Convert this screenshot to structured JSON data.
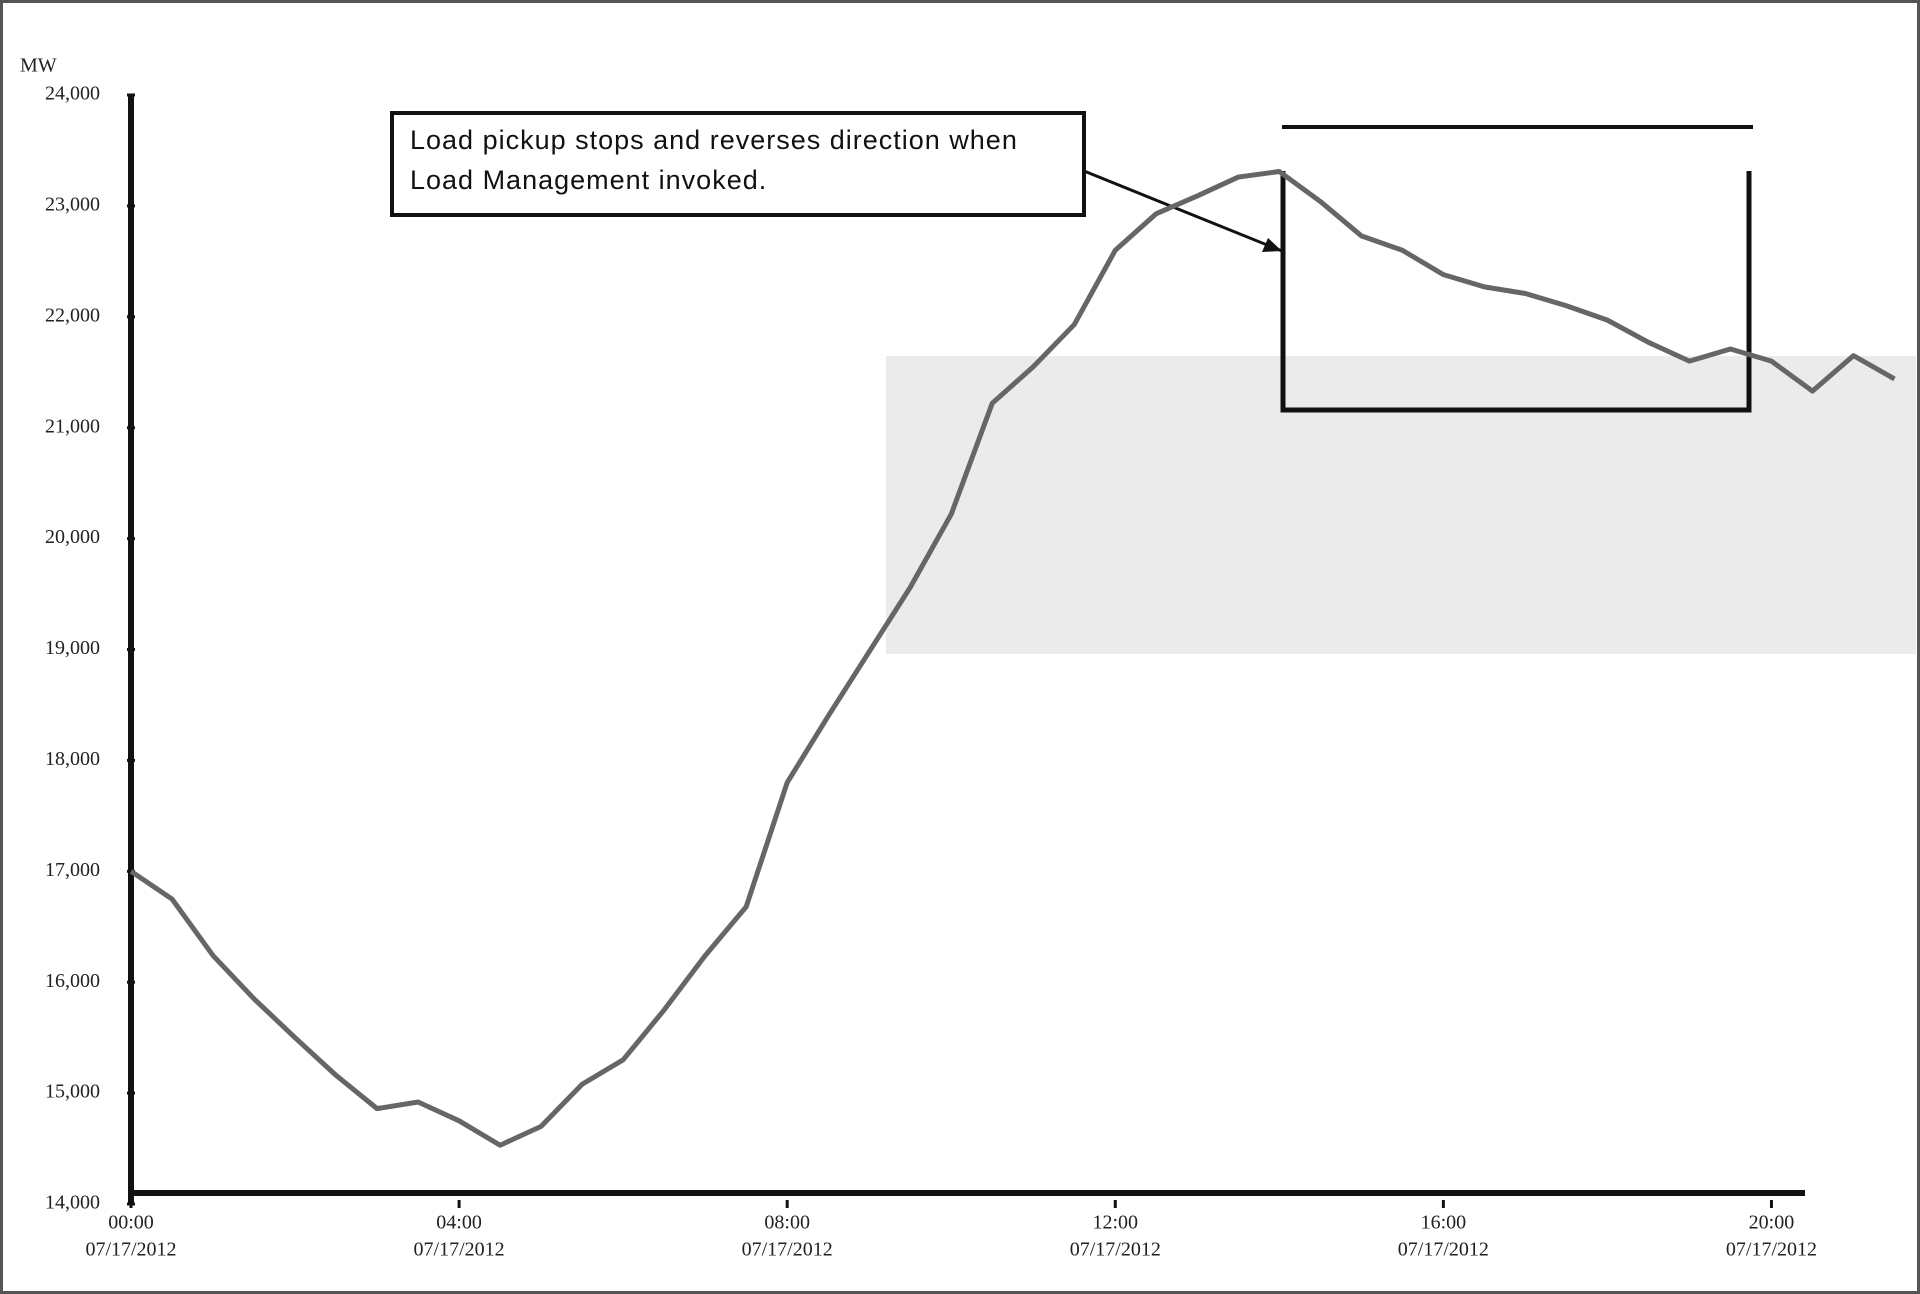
{
  "chart_data": {
    "type": "line",
    "y_label": "MW",
    "annotation": "Load pickup stops and reverses direction when Load Management invoked.",
    "x": [
      0,
      0.5,
      1,
      1.5,
      2,
      2.5,
      3,
      3.5,
      4,
      4.5,
      5,
      5.5,
      6,
      6.5,
      7,
      7.5,
      8,
      8.5,
      9,
      9.5,
      10,
      10.5,
      11,
      11.5,
      12,
      12.5,
      13,
      13.5,
      14,
      14.5,
      15,
      15.5,
      16,
      16.5,
      17,
      17.5,
      18,
      18.5,
      19,
      19.5,
      20,
      20.5,
      21,
      21.5
    ],
    "series": [
      {
        "color": "#666666",
        "values": [
          17000,
          16750,
          16240,
          15850,
          15500,
          15160,
          14860,
          14920,
          14750,
          14530,
          14700,
          15080,
          15300,
          15750,
          16240,
          16680,
          17800,
          18400,
          18980,
          19560,
          20220,
          21220,
          21550,
          21930,
          22600,
          22930,
          23090,
          23260,
          23310,
          23040,
          22730,
          22600,
          22380,
          22270,
          22210,
          22100,
          21970,
          21770,
          21600,
          21710,
          21600,
          21330,
          21650,
          21440
        ]
      }
    ],
    "xlim": [
      0,
      21.75
    ],
    "xticks": [
      {
        "value": 0,
        "label": "00:00"
      },
      {
        "value": 4,
        "label": "04:00"
      },
      {
        "value": 8,
        "label": "08:00"
      },
      {
        "value": 12,
        "label": "12:00"
      },
      {
        "value": 16,
        "label": "16:00"
      },
      {
        "value": 20,
        "label": "20:00"
      }
    ],
    "xtick_dates": [
      "07/17/2012",
      "07/17/2012",
      "07/17/2012",
      "07/17/2012",
      "07/17/2012",
      "07/17/2012"
    ],
    "ylim": [
      14000,
      24000
    ],
    "yticks": [
      {
        "value": 14000,
        "label": "14,000"
      },
      {
        "value": 15000,
        "label": "15,000"
      },
      {
        "value": 16000,
        "label": "16,000"
      },
      {
        "value": 17000,
        "label": "17,000"
      },
      {
        "value": 18000,
        "label": "18,000"
      },
      {
        "value": 19000,
        "label": "19,000"
      },
      {
        "value": 20000,
        "label": "20,000"
      },
      {
        "value": 21000,
        "label": "21,000"
      },
      {
        "value": 22000,
        "label": "22,000"
      },
      {
        "value": 23000,
        "label": "23,000"
      },
      {
        "value": 24000,
        "label": "24,000"
      }
    ]
  }
}
